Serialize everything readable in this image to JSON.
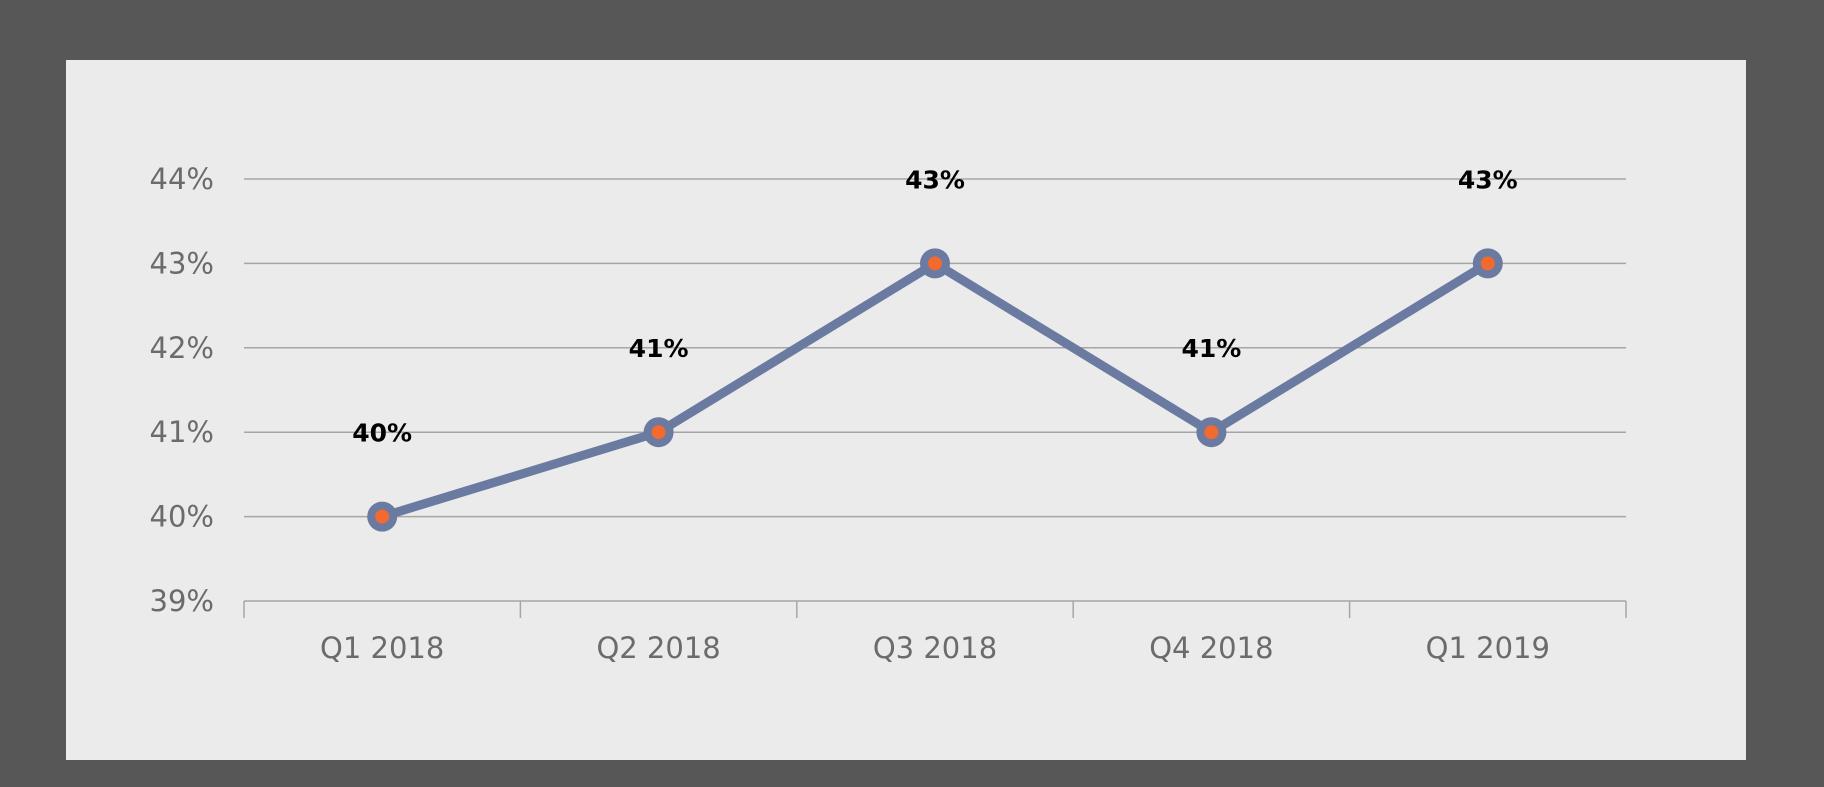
{
  "chart_data": {
    "type": "line",
    "categories": [
      "Q1 2018",
      "Q2 2018",
      "Q3 2018",
      "Q4 2018",
      "Q1 2019"
    ],
    "series": [
      {
        "values": [
          40,
          41,
          43,
          41,
          43
        ],
        "data_labels": [
          "40%",
          "41%",
          "43%",
          "41%",
          "43%"
        ],
        "color": "#6b7aa1",
        "marker_color": "#f26a2e"
      }
    ],
    "y_ticks": [
      {
        "value": 39,
        "label": "39%"
      },
      {
        "value": 40,
        "label": "40%"
      },
      {
        "value": 41,
        "label": "41%"
      },
      {
        "value": 42,
        "label": "42%"
      },
      {
        "value": 43,
        "label": "43%"
      },
      {
        "value": 44,
        "label": "44%"
      }
    ],
    "ylim": [
      39,
      44
    ],
    "grid": true,
    "legend": "none",
    "colors": {
      "background": "#575757",
      "panel": "#ebebeb",
      "gridline": "#a6a6a6",
      "tick_text": "#6b6b6b"
    }
  }
}
